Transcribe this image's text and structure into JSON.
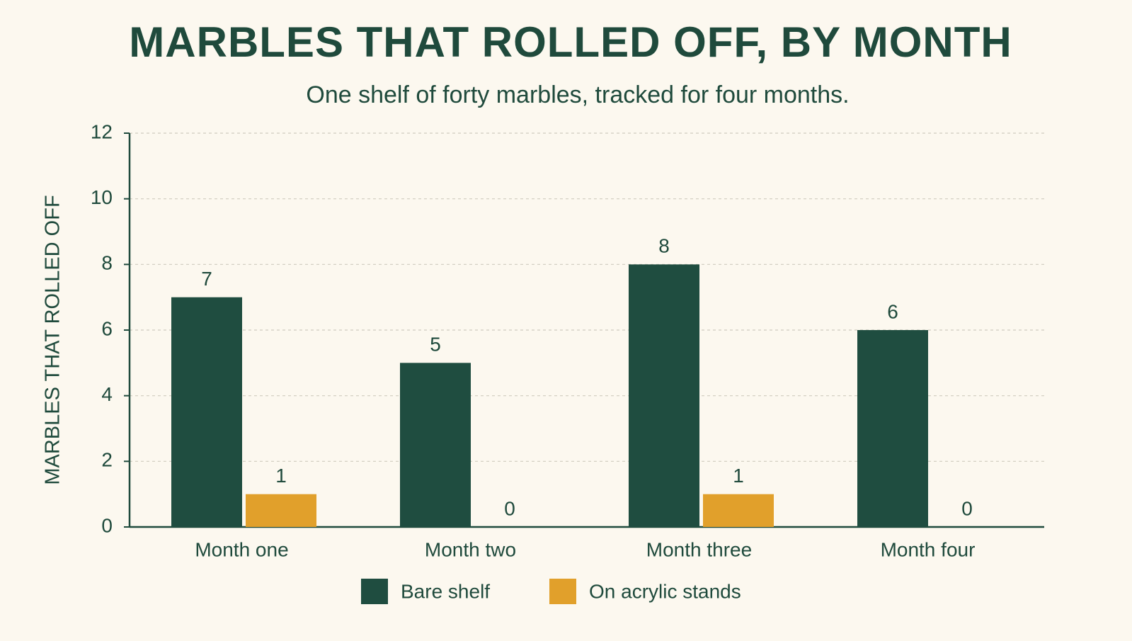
{
  "chart_data": {
    "type": "bar",
    "title": "MARBLES THAT ROLLED OFF, BY MONTH",
    "subtitle": "One shelf of forty marbles, tracked for four months.",
    "y_label": "MARBLES THAT ROLLED OFF",
    "categories": [
      "Month one",
      "Month two",
      "Month three",
      "Month four"
    ],
    "series": [
      {
        "name": "Bare shelf",
        "color": "#1f4d40",
        "values": [
          7,
          5,
          8,
          6
        ]
      },
      {
        "name": "On acrylic stands",
        "color": "#e1a02b",
        "values": [
          1,
          0,
          1,
          0
        ]
      }
    ],
    "ylim": [
      0,
      12
    ],
    "yticks": [
      0,
      2,
      4,
      6,
      8,
      10,
      12
    ],
    "grid": true
  }
}
